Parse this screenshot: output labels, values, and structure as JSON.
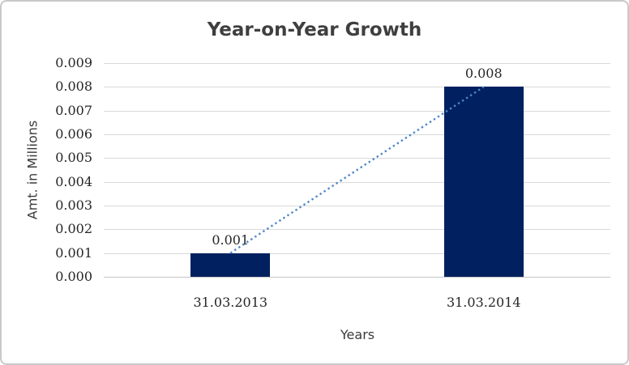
{
  "chart_data": {
    "type": "bar",
    "title": "Year-on-Year Growth",
    "xlabel": "Years",
    "ylabel": "Amt. in Millions",
    "categories": [
      "31.03.2013",
      "31.03.2014"
    ],
    "values": [
      0.001,
      0.008
    ],
    "data_labels": [
      "0.001",
      "0.008"
    ],
    "y_ticks": [
      "0.000",
      "0.001",
      "0.002",
      "0.003",
      "0.004",
      "0.005",
      "0.006",
      "0.007",
      "0.008",
      "0.009"
    ],
    "ylim": [
      0,
      0.009
    ],
    "grid": true,
    "legend": "none",
    "trendline": {
      "style": "dotted",
      "from_value": 0.001,
      "to_value": 0.008
    },
    "colors": {
      "bar": "#002060",
      "trendline": "#4f87c7",
      "gridline": "#d9d9d9",
      "axis_line": "#c4c4c4",
      "title_text": "#3f3f3f",
      "label_text": "#262626"
    }
  }
}
